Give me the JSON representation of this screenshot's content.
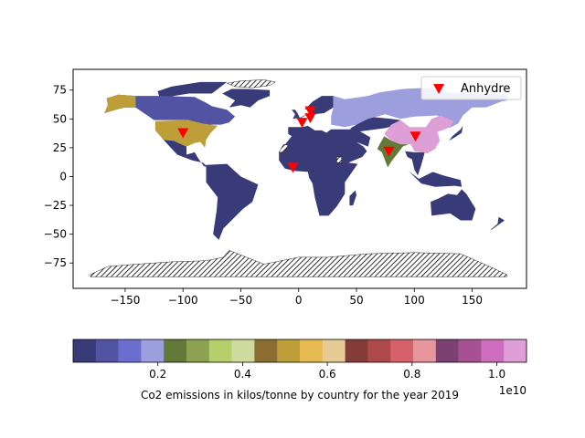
{
  "chart_data": {
    "type": "choropleth",
    "title": "",
    "x_axis": {
      "ticks": [
        -150,
        -100,
        -50,
        0,
        50,
        100,
        150
      ],
      "lim": [
        -195,
        197
      ]
    },
    "y_axis": {
      "ticks": [
        75,
        50,
        25,
        0,
        -25,
        -50,
        -75
      ],
      "lim": [
        -97,
        93
      ]
    },
    "legend": {
      "label": "Anhydre",
      "marker": "down-triangle",
      "color": "#ff0000",
      "placement": "upper-right"
    },
    "markers": [
      {
        "lon": -100,
        "lat": 38
      },
      {
        "lon": 3,
        "lat": 47
      },
      {
        "lon": 10,
        "lat": 57
      },
      {
        "lon": 10,
        "lat": 51
      },
      {
        "lon": -5,
        "lat": 8
      },
      {
        "lon": 78,
        "lat": 22
      },
      {
        "lon": 101,
        "lat": 35
      }
    ],
    "colorbar": {
      "label": "Co2 emissions  in kilos/tonne by country for the year 2019",
      "offset_text": "1e10",
      "range": [
        0,
        1.07
      ],
      "ticks": [
        0.2,
        0.4,
        0.6,
        0.8,
        1.0
      ],
      "tick_labels": [
        "0.2",
        "0.4",
        "0.6",
        "0.8",
        "1.0"
      ],
      "colors": [
        "#393b79",
        "#5254a3",
        "#6b6ecf",
        "#9c9ede",
        "#637939",
        "#8ca252",
        "#b5cf6b",
        "#cedb9c",
        "#8c6d31",
        "#bd9e39",
        "#e7ba52",
        "#e7cb94",
        "#843c39",
        "#ad494a",
        "#d6616b",
        "#e7969c",
        "#7b4173",
        "#a55194",
        "#ce6dbd",
        "#de9ed6"
      ]
    },
    "regions": [
      {
        "name": "China",
        "color": "#de9ed6"
      },
      {
        "name": "United States",
        "color": "#bd9e39"
      },
      {
        "name": "India",
        "color": "#637939"
      },
      {
        "name": "Russia",
        "color": "#9c9ede"
      },
      {
        "name": "Canada",
        "color": "#5254a3"
      },
      {
        "name": "Other",
        "color": "#393b79"
      },
      {
        "name": "No data",
        "color": "hatched"
      }
    ]
  }
}
